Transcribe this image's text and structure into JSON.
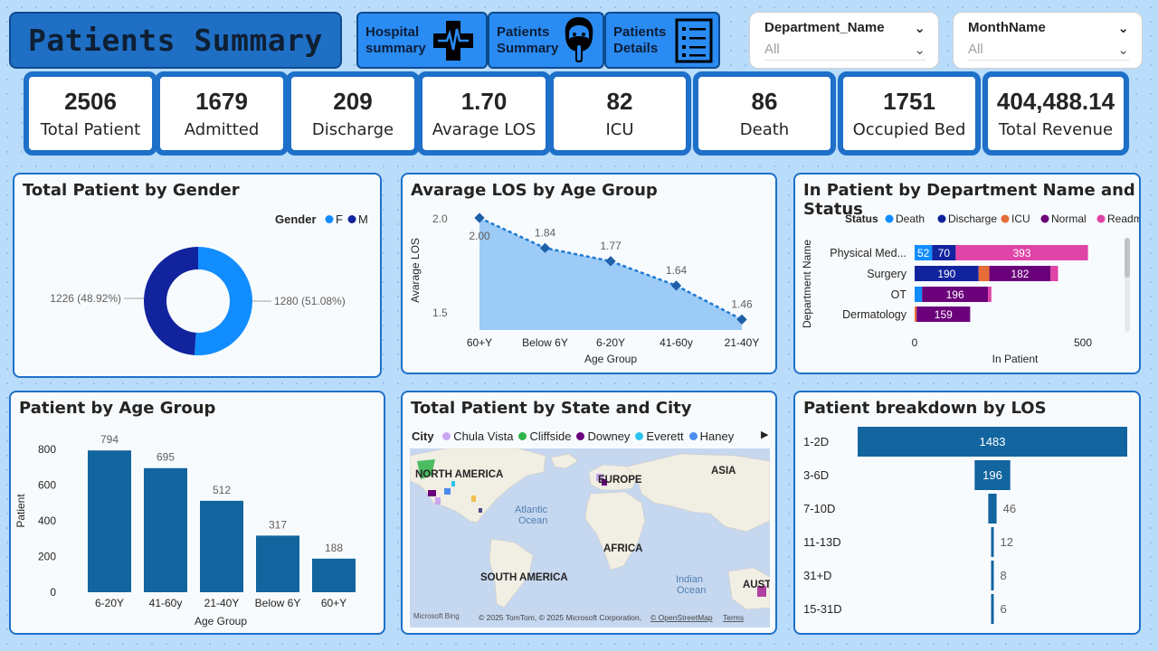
{
  "title": "Patients Summary",
  "nav": [
    {
      "label1": "Hospital",
      "label2": "summary",
      "icon": "hospital-cross-icon"
    },
    {
      "label1": "Patients",
      "label2": "Summary",
      "icon": "patient-avatar-icon"
    },
    {
      "label1": "Patients",
      "label2": "Details",
      "icon": "checklist-icon"
    }
  ],
  "slicers": [
    {
      "name": "Department_Name",
      "value": "All"
    },
    {
      "name": "MonthName",
      "value": "All"
    }
  ],
  "kpis": [
    {
      "value": "2506",
      "label": "Total Patient"
    },
    {
      "value": "1679",
      "label": "Admitted"
    },
    {
      "value": "209",
      "label": "Discharge"
    },
    {
      "value": "1.70",
      "label": "Avarage LOS"
    },
    {
      "value": "82",
      "label": "ICU"
    },
    {
      "value": "86",
      "label": "Death"
    },
    {
      "value": "1751",
      "label": "Occupied Bed"
    },
    {
      "value": "404,488.14",
      "label": "Total Revenue"
    }
  ],
  "colors": {
    "primary": "#1e70c8",
    "bar": "#12659f",
    "female": "#118dff",
    "male": "#12239e",
    "death": "#118dff",
    "discharge": "#12239e",
    "icu": "#e66c37",
    "normal": "#6b007b",
    "readmit": "#e044a7"
  },
  "chart_data": [
    {
      "type": "pie",
      "title": "Total Patient by Gender",
      "legend_title": "Gender",
      "legend_position": "top-right",
      "categories": [
        "F",
        "M"
      ],
      "values": [
        1280,
        1226
      ],
      "labels": [
        "1280 (51.08%)",
        "1226 (48.92%)"
      ]
    },
    {
      "type": "area",
      "title": "Avarage LOS by Age Group",
      "xlabel": "Age Group",
      "ylabel": "Avarage LOS",
      "categories": [
        "60+Y",
        "Below 6Y",
        "6-20Y",
        "41-60y",
        "21-40Y"
      ],
      "values": [
        2.0,
        1.84,
        1.77,
        1.64,
        1.46
      ],
      "data_labels": [
        "2.00",
        "1.84",
        "1.77",
        "1.64",
        "1.46"
      ],
      "ylim": [
        1.5,
        2.0
      ],
      "yticks": [
        "2.0",
        "1.5"
      ]
    },
    {
      "type": "bar",
      "orientation": "horizontal-stacked",
      "title": "In Patient by Department Name and Status",
      "legend_title": "Status",
      "legend_position": "top",
      "xlabel": "In Patient",
      "ylabel": "Department Name",
      "categories": [
        "Physical Med...",
        "Surgery",
        "OT",
        "Dermatology"
      ],
      "xticks": [
        "0",
        "500"
      ],
      "xlim": [
        0,
        500
      ],
      "series": [
        {
          "name": "Death",
          "values": [
            52,
            0,
            22,
            0
          ],
          "labels": [
            "52",
            "",
            "",
            ""
          ]
        },
        {
          "name": "Discharge",
          "values": [
            70,
            190,
            0,
            0
          ],
          "labels": [
            "70",
            "190",
            "",
            ""
          ]
        },
        {
          "name": "ICU",
          "values": [
            0,
            32,
            0,
            6
          ],
          "labels": [
            "",
            "",
            "",
            ""
          ]
        },
        {
          "name": "Normal",
          "values": [
            0,
            182,
            196,
            159
          ],
          "labels": [
            "",
            "182",
            "196",
            "159"
          ]
        },
        {
          "name": "Readmit",
          "values": [
            393,
            22,
            10,
            0
          ],
          "labels": [
            "393",
            "",
            "",
            ""
          ]
        }
      ]
    },
    {
      "type": "bar",
      "title": "Patient by Age Group",
      "xlabel": "Age Group",
      "ylabel": "Patient",
      "categories": [
        "6-20Y",
        "41-60y",
        "21-40Y",
        "Below 6Y",
        "60+Y"
      ],
      "values": [
        794,
        695,
        512,
        317,
        188
      ],
      "data_labels": [
        "794",
        "695",
        "512",
        "317",
        "188"
      ],
      "ylim": [
        0,
        800
      ],
      "yticks": [
        "800",
        "600",
        "400",
        "200",
        "0"
      ]
    },
    {
      "type": "bar",
      "orientation": "horizontal",
      "title": "Patient breakdown by LOS",
      "categories": [
        "1-2D",
        "3-6D",
        "7-10D",
        "11-13D",
        "31+D",
        "15-31D"
      ],
      "values": [
        1483,
        196,
        46,
        12,
        8,
        6
      ],
      "data_labels": [
        "1483",
        "196",
        "46",
        "12",
        "8",
        "6"
      ]
    }
  ],
  "map": {
    "title": "Total Patient by State and City",
    "legend_title": "City",
    "legend": [
      {
        "name": "Chula Vista",
        "color": "#c9a6f2"
      },
      {
        "name": "Cliffside",
        "color": "#2fb34a"
      },
      {
        "name": "Downey",
        "color": "#6b007b"
      },
      {
        "name": "Everett",
        "color": "#2cc4ef"
      },
      {
        "name": "Haney",
        "color": "#4a8cf0"
      }
    ],
    "labels": {
      "na": "NORTH AMERICA",
      "eu": "EUROPE",
      "asia": "ASIA",
      "africa": "AFRICA",
      "sa": "SOUTH AMERICA",
      "atlantic1": "Atlantic",
      "atlantic2": "Ocean",
      "indian1": "Indian",
      "indian2": "Ocean",
      "aus": "AUST"
    },
    "logo": "Microsoft Bing",
    "copyright": "© 2025 TomTom, © 2025 Microsoft Corporation,",
    "osm": "© OpenStreetMap",
    "terms": "Terms"
  }
}
